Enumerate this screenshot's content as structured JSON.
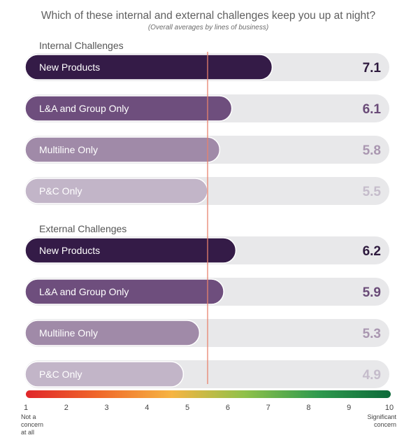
{
  "chart_data": {
    "type": "bar",
    "orientation": "horizontal",
    "title": "Which of these internal and external challenges keep you up at night?",
    "subtitle": "(Overall averages by lines of business)",
    "xlim": [
      1,
      10
    ],
    "reference_line": 5.5,
    "groups": [
      {
        "label": "Internal Challenges",
        "bars": [
          {
            "category": "New Products",
            "value": 7.1,
            "value_label": "7.1"
          },
          {
            "category": "L&A and Group Only",
            "value": 6.1,
            "value_label": "6.1"
          },
          {
            "category": "Multiline Only",
            "value": 5.8,
            "value_label": "5.8"
          },
          {
            "category": "P&C Only",
            "value": 5.5,
            "value_label": "5.5"
          }
        ]
      },
      {
        "label": "External Challenges",
        "bars": [
          {
            "category": "New Products",
            "value": 6.2,
            "value_label": "6.2"
          },
          {
            "category": "L&A and Group Only",
            "value": 5.9,
            "value_label": "5.9"
          },
          {
            "category": "Multiline Only",
            "value": 5.3,
            "value_label": "5.3"
          },
          {
            "category": "P&C Only",
            "value": 4.9,
            "value_label": "4.9"
          }
        ]
      }
    ],
    "scale_ticks": [
      "1",
      "2",
      "3",
      "4",
      "5",
      "6",
      "7",
      "8",
      "9",
      "10"
    ],
    "scale_min_label": [
      "Not a",
      "concern",
      "at all"
    ],
    "scale_max_label": [
      "Significant",
      "concern"
    ],
    "colors": {
      "bar_fills": [
        "#341b47",
        "#6e4e7d",
        "#a08aa8",
        "#c2b5c8"
      ],
      "value_text": [
        "#2e1a3e",
        "#6a4b78",
        "#a996b0",
        "#c5bccb"
      ],
      "track": "#e8e8ea",
      "reference_line": "#e8826e",
      "gradient": [
        "#e0262a",
        "#f0682a",
        "#f6b442",
        "#8fc14a",
        "#2f9a4e",
        "#0d6a3a"
      ]
    }
  }
}
